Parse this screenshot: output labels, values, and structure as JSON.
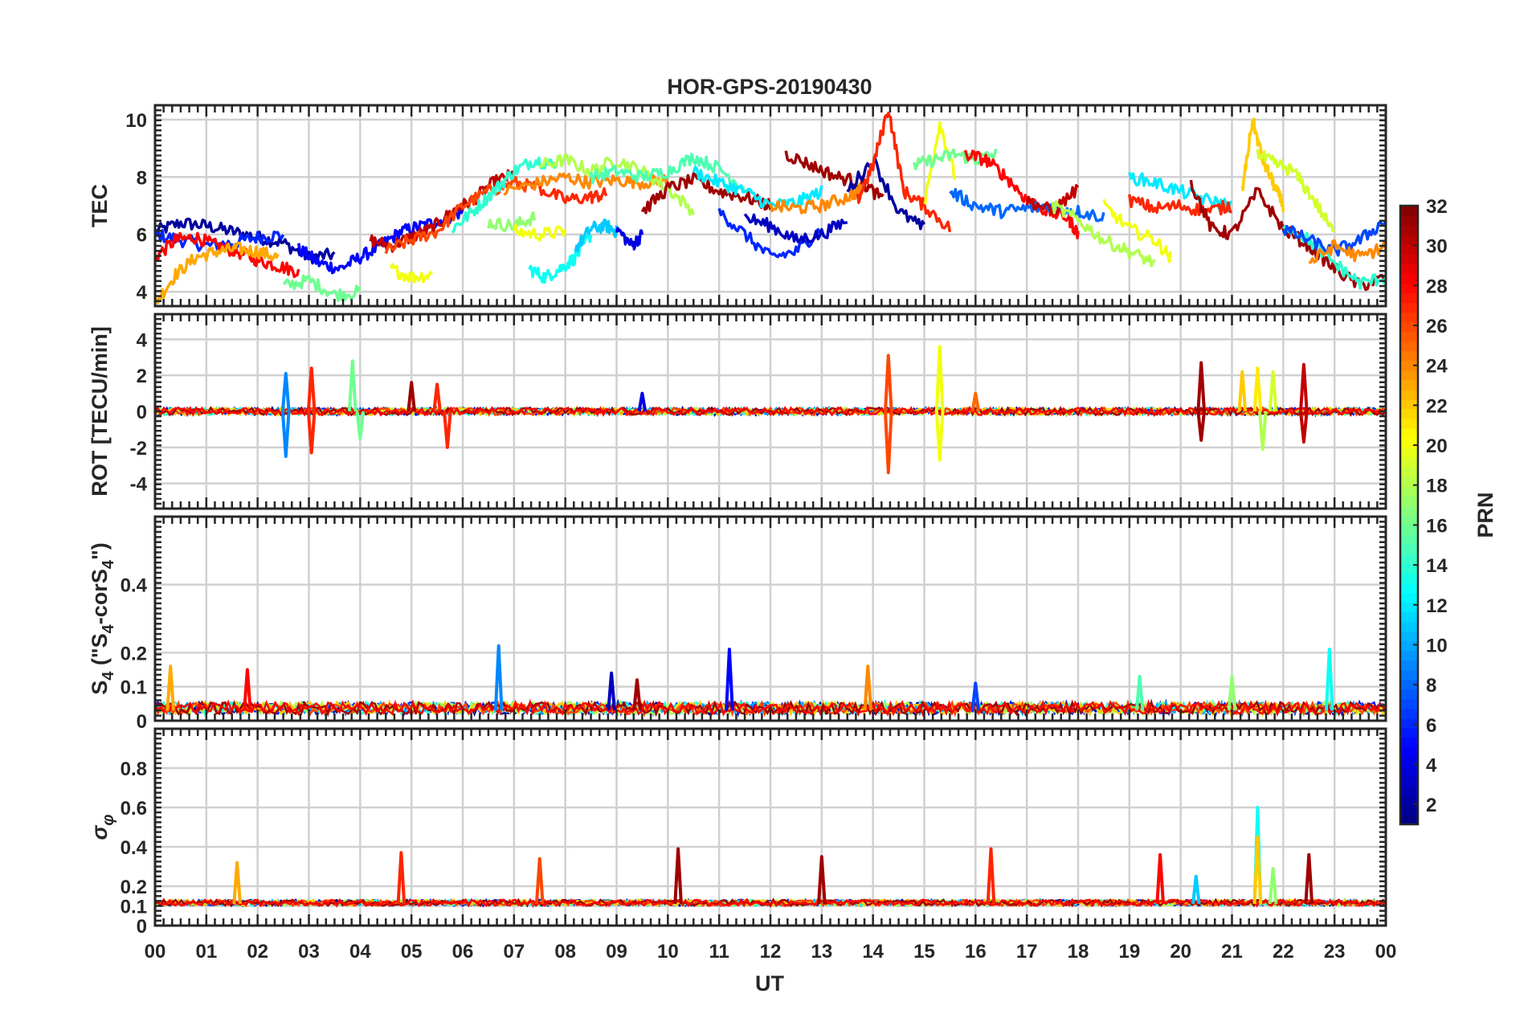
{
  "chart_data": [
    {
      "type": "line",
      "title": "HOR-GPS-20190430",
      "ylabel": "TEC",
      "xlabel": "",
      "xlim": [
        0,
        24
      ],
      "ylim": [
        3.5,
        10.5
      ],
      "yticks": [
        4,
        6,
        8,
        10
      ],
      "grid": true,
      "series": [
        {
          "prn": 2,
          "x": [
            0.0,
            0.5,
            1.0,
            1.5,
            2.0,
            2.5,
            3.0,
            3.5
          ],
          "y": [
            6.1,
            6.4,
            6.3,
            6.1,
            5.9,
            5.7,
            5.2,
            5.3
          ]
        },
        {
          "prn": 6,
          "x": [
            0.0,
            0.5,
            1.0,
            1.5,
            2.0,
            2.5
          ],
          "y": [
            6.0,
            5.8,
            5.6,
            5.7,
            5.9,
            6.0
          ]
        },
        {
          "prn": 5,
          "x": [
            2.8,
            3.2,
            3.6,
            4.0,
            4.4,
            4.8,
            5.2,
            5.6,
            6.0
          ],
          "y": [
            5.5,
            5.0,
            4.8,
            5.2,
            5.6,
            6.1,
            6.3,
            6.5,
            6.8
          ]
        },
        {
          "prn": 28,
          "x": [
            0.0,
            0.4,
            0.8,
            1.2,
            1.6,
            2.0,
            2.4,
            2.8
          ],
          "y": [
            5.2,
            5.8,
            5.9,
            5.6,
            5.4,
            5.1,
            4.9,
            4.7
          ]
        },
        {
          "prn": 23,
          "x": [
            0.0,
            0.4,
            0.8,
            1.2,
            1.6,
            2.0,
            2.4
          ],
          "y": [
            3.6,
            4.6,
            5.2,
            5.4,
            5.5,
            5.4,
            5.2
          ]
        },
        {
          "prn": 16,
          "x": [
            2.5,
            3.0,
            3.5,
            4.0
          ],
          "y": [
            4.2,
            4.4,
            3.9,
            4.0
          ]
        },
        {
          "prn": 30,
          "x": [
            4.2,
            4.6,
            5.0,
            5.4,
            5.8,
            6.2,
            6.6,
            7.0
          ],
          "y": [
            5.8,
            5.6,
            5.9,
            6.2,
            6.8,
            7.2,
            7.8,
            8.1
          ]
        },
        {
          "prn": 26,
          "x": [
            4.5,
            5.0,
            5.5,
            6.0,
            6.5,
            7.0,
            7.5
          ],
          "y": [
            5.4,
            5.8,
            6.1,
            7.0,
            7.5,
            7.8,
            7.6
          ]
        },
        {
          "prn": 20,
          "x": [
            4.6,
            5.0,
            5.4
          ],
          "y": [
            4.8,
            4.5,
            4.6
          ]
        },
        {
          "prn": 14,
          "x": [
            5.8,
            6.2,
            6.6,
            7.0,
            7.4,
            7.8
          ],
          "y": [
            6.2,
            6.8,
            7.5,
            8.2,
            8.6,
            8.4
          ]
        },
        {
          "prn": 17,
          "x": [
            6.5,
            7.0,
            7.4
          ],
          "y": [
            6.4,
            6.3,
            6.6
          ]
        },
        {
          "prn": 20,
          "x": [
            7.0,
            7.5,
            8.0
          ],
          "y": [
            6.1,
            6.0,
            6.1
          ]
        },
        {
          "prn": 13,
          "x": [
            7.3,
            7.6,
            7.9,
            8.2,
            8.5
          ],
          "y": [
            4.8,
            4.5,
            4.8,
            5.2,
            6.0
          ]
        },
        {
          "prn": 11,
          "x": [
            8.2,
            8.5,
            8.8,
            9.0
          ],
          "y": [
            5.5,
            6.2,
            6.3,
            6.1
          ]
        },
        {
          "prn": 4,
          "x": [
            9.0,
            9.3,
            9.5
          ],
          "y": [
            6.2,
            5.6,
            6.0
          ]
        },
        {
          "prn": 24,
          "x": [
            6.8,
            7.5,
            8.0,
            8.5,
            9.0,
            9.5,
            10.0
          ],
          "y": [
            7.5,
            7.8,
            8.0,
            7.8,
            7.9,
            7.8,
            7.9
          ]
        },
        {
          "prn": 27,
          "x": [
            7.5,
            8.0,
            8.5,
            8.8
          ],
          "y": [
            7.6,
            7.2,
            7.3,
            7.4
          ]
        },
        {
          "prn": 18,
          "x": [
            7.5,
            8.0,
            8.5,
            9.0,
            9.5,
            10.0,
            10.5
          ],
          "y": [
            8.4,
            8.6,
            8.2,
            8.6,
            8.2,
            7.6,
            6.8
          ]
        },
        {
          "prn": 15,
          "x": [
            8.5,
            9.0,
            9.5,
            10.0,
            10.5,
            11.0,
            11.5
          ],
          "y": [
            8.0,
            8.2,
            8.0,
            8.2,
            8.7,
            8.3,
            7.6
          ]
        },
        {
          "prn": 31,
          "x": [
            9.5,
            10.0,
            10.5,
            11.0,
            11.5,
            12.0
          ],
          "y": [
            6.8,
            7.6,
            7.9,
            7.5,
            7.3,
            7.0
          ]
        },
        {
          "prn": 12,
          "x": [
            10.5,
            11.0,
            11.5,
            12.0,
            12.5,
            13.0
          ],
          "y": [
            8.2,
            7.8,
            7.5,
            7.0,
            7.1,
            7.5
          ]
        },
        {
          "prn": 6,
          "x": [
            11.0,
            11.5,
            12.0,
            12.5,
            13.0
          ],
          "y": [
            6.8,
            6.0,
            5.2,
            5.4,
            6.2
          ]
        },
        {
          "prn": 3,
          "x": [
            11.5,
            12.0,
            12.5,
            13.0,
            13.5
          ],
          "y": [
            6.6,
            6.3,
            5.8,
            6.0,
            6.5
          ]
        },
        {
          "prn": 31,
          "x": [
            12.3,
            12.8,
            13.3,
            13.8,
            14.2
          ],
          "y": [
            8.8,
            8.4,
            8.0,
            7.8,
            7.2
          ]
        },
        {
          "prn": 24,
          "x": [
            12.0,
            12.5,
            13.0,
            13.5,
            13.8
          ],
          "y": [
            7.0,
            6.9,
            7.0,
            7.3,
            7.6
          ]
        },
        {
          "prn": 2,
          "x": [
            13.5,
            14.0,
            14.5,
            15.0
          ],
          "y": [
            7.5,
            8.6,
            6.8,
            6.2
          ]
        },
        {
          "prn": 27,
          "x": [
            13.7,
            14.0,
            14.3,
            14.6,
            15.0,
            15.5
          ],
          "y": [
            7.2,
            8.4,
            10.4,
            7.5,
            7.0,
            6.2
          ]
        },
        {
          "prn": 20,
          "x": [
            15.0,
            15.3,
            15.6
          ],
          "y": [
            7.0,
            9.9,
            8.0
          ]
        },
        {
          "prn": 16,
          "x": [
            14.8,
            15.2,
            15.6,
            16.0,
            16.4
          ],
          "y": [
            8.4,
            8.6,
            8.8,
            8.6,
            8.8
          ]
        },
        {
          "prn": 28,
          "x": [
            15.8,
            16.2,
            16.6,
            17.0,
            17.4,
            17.8,
            18.0
          ],
          "y": [
            8.8,
            8.6,
            8.0,
            7.2,
            6.8,
            6.6,
            6.0
          ]
        },
        {
          "prn": 8,
          "x": [
            15.5,
            16.0,
            16.5,
            17.0,
            17.5,
            18.0,
            18.5
          ],
          "y": [
            7.5,
            7.0,
            6.8,
            6.9,
            7.0,
            6.8,
            6.6
          ]
        },
        {
          "prn": 30,
          "x": [
            17.0,
            17.5,
            18.0
          ],
          "y": [
            7.2,
            6.8,
            7.6
          ]
        },
        {
          "prn": 18,
          "x": [
            17.5,
            18.0,
            18.5,
            19.0,
            19.5
          ],
          "y": [
            7.0,
            6.5,
            5.8,
            5.4,
            5.0
          ]
        },
        {
          "prn": 20,
          "x": [
            18.5,
            19.0,
            19.5,
            19.8
          ],
          "y": [
            7.0,
            6.2,
            5.8,
            5.2
          ]
        },
        {
          "prn": 12,
          "x": [
            19.0,
            19.5,
            20.0,
            20.5,
            21.0
          ],
          "y": [
            8.0,
            7.8,
            7.5,
            7.2,
            7.0
          ]
        },
        {
          "prn": 27,
          "x": [
            19.0,
            19.5,
            20.0,
            20.5,
            21.0
          ],
          "y": [
            7.2,
            6.9,
            7.0,
            6.8,
            7.0
          ]
        },
        {
          "prn": 31,
          "x": [
            20.2,
            20.6,
            21.0,
            21.5,
            22.0,
            22.5,
            23.0,
            23.5,
            24.0
          ],
          "y": [
            7.8,
            6.2,
            6.0,
            7.5,
            6.2,
            5.6,
            4.8,
            4.2,
            4.5
          ]
        },
        {
          "prn": 22,
          "x": [
            21.2,
            21.4,
            21.6,
            21.8,
            22.0
          ],
          "y": [
            7.5,
            10.0,
            8.6,
            7.8,
            7.0
          ]
        },
        {
          "prn": 19,
          "x": [
            21.5,
            21.8,
            22.2,
            22.6,
            23.0
          ],
          "y": [
            8.8,
            8.5,
            8.2,
            7.2,
            6.0
          ]
        },
        {
          "prn": 14,
          "x": [
            22.0,
            22.5,
            23.0,
            23.5,
            24.0
          ],
          "y": [
            6.4,
            5.8,
            5.0,
            4.3,
            4.5
          ]
        },
        {
          "prn": 7,
          "x": [
            22.0,
            22.5,
            23.0,
            23.5,
            24.0
          ],
          "y": [
            6.2,
            5.8,
            5.4,
            5.8,
            6.5
          ]
        },
        {
          "prn": 24,
          "x": [
            22.5,
            23.0,
            23.5,
            24.0
          ],
          "y": [
            5.0,
            5.6,
            5.2,
            5.6
          ]
        }
      ]
    },
    {
      "type": "line",
      "ylabel": "ROT [TECU/min]",
      "xlim": [
        0,
        24
      ],
      "ylim": [
        -5.4,
        5.4
      ],
      "yticks": [
        -4,
        -2,
        0,
        2,
        4
      ],
      "grid": true,
      "noise_amplitude": 0.2,
      "spikes": [
        {
          "x": 2.55,
          "y": 2.1,
          "prn": 9
        },
        {
          "x": 2.55,
          "y": -2.5,
          "prn": 9
        },
        {
          "x": 3.05,
          "y": 2.4,
          "prn": 27
        },
        {
          "x": 3.05,
          "y": -2.3,
          "prn": 27
        },
        {
          "x": 3.85,
          "y": 2.8,
          "prn": 16
        },
        {
          "x": 4.0,
          "y": -1.5,
          "prn": 16
        },
        {
          "x": 5.0,
          "y": 1.6,
          "prn": 31
        },
        {
          "x": 5.5,
          "y": 1.5,
          "prn": 27
        },
        {
          "x": 5.7,
          "y": -2.0,
          "prn": 27
        },
        {
          "x": 9.5,
          "y": 1.0,
          "prn": 4
        },
        {
          "x": 14.3,
          "y": 3.1,
          "prn": 26
        },
        {
          "x": 14.3,
          "y": -3.4,
          "prn": 26
        },
        {
          "x": 15.3,
          "y": 3.6,
          "prn": 20
        },
        {
          "x": 15.3,
          "y": -2.7,
          "prn": 20
        },
        {
          "x": 16.0,
          "y": 1.0,
          "prn": 25
        },
        {
          "x": 20.4,
          "y": 2.7,
          "prn": 31
        },
        {
          "x": 20.4,
          "y": -1.6,
          "prn": 31
        },
        {
          "x": 21.2,
          "y": 2.2,
          "prn": 22
        },
        {
          "x": 21.5,
          "y": 2.4,
          "prn": 21
        },
        {
          "x": 21.6,
          "y": -2.1,
          "prn": 18
        },
        {
          "x": 21.8,
          "y": 2.2,
          "prn": 19
        },
        {
          "x": 22.4,
          "y": 2.6,
          "prn": 30
        },
        {
          "x": 22.4,
          "y": -1.7,
          "prn": 30
        }
      ]
    },
    {
      "type": "line",
      "ylabel": "S4 (\"S4-corS4\")",
      "xlim": [
        0,
        24
      ],
      "ylim": [
        0,
        0.6
      ],
      "yticks": [
        0,
        0.1,
        0.2,
        0.4
      ],
      "grid": true,
      "baseline": 0.03,
      "spikes": [
        {
          "x": 0.3,
          "y": 0.16,
          "prn": 23
        },
        {
          "x": 1.8,
          "y": 0.15,
          "prn": 28
        },
        {
          "x": 6.7,
          "y": 0.22,
          "prn": 9
        },
        {
          "x": 8.9,
          "y": 0.14,
          "prn": 3
        },
        {
          "x": 9.4,
          "y": 0.12,
          "prn": 31
        },
        {
          "x": 11.2,
          "y": 0.21,
          "prn": 5
        },
        {
          "x": 13.9,
          "y": 0.16,
          "prn": 24
        },
        {
          "x": 16.0,
          "y": 0.11,
          "prn": 7
        },
        {
          "x": 19.2,
          "y": 0.13,
          "prn": 15
        },
        {
          "x": 21.0,
          "y": 0.13,
          "prn": 17
        },
        {
          "x": 22.9,
          "y": 0.21,
          "prn": 13
        }
      ]
    },
    {
      "type": "line",
      "ylabel": "σφ",
      "xlabel": "UT",
      "xlim": [
        0,
        24
      ],
      "ylim": [
        0,
        1.0
      ],
      "yticks": [
        0,
        0.1,
        0.2,
        0.4,
        0.6,
        0.8
      ],
      "grid": true,
      "baseline": 0.11,
      "spikes": [
        {
          "x": 1.6,
          "y": 0.32,
          "prn": 23
        },
        {
          "x": 4.8,
          "y": 0.37,
          "prn": 27
        },
        {
          "x": 7.5,
          "y": 0.34,
          "prn": 26
        },
        {
          "x": 10.2,
          "y": 0.39,
          "prn": 31
        },
        {
          "x": 13.0,
          "y": 0.35,
          "prn": 31
        },
        {
          "x": 16.3,
          "y": 0.39,
          "prn": 27
        },
        {
          "x": 19.6,
          "y": 0.36,
          "prn": 28
        },
        {
          "x": 20.3,
          "y": 0.25,
          "prn": 11
        },
        {
          "x": 21.5,
          "y": 0.6,
          "prn": 13
        },
        {
          "x": 21.5,
          "y": 0.45,
          "prn": 22
        },
        {
          "x": 21.8,
          "y": 0.29,
          "prn": 17
        },
        {
          "x": 22.5,
          "y": 0.36,
          "prn": 31
        }
      ]
    }
  ],
  "xaxis": {
    "xlim": [
      0,
      24
    ],
    "tick_labels": [
      "00",
      "01",
      "02",
      "03",
      "04",
      "05",
      "06",
      "07",
      "08",
      "09",
      "10",
      "11",
      "12",
      "13",
      "14",
      "15",
      "16",
      "17",
      "18",
      "19",
      "20",
      "21",
      "22",
      "23",
      "00"
    ],
    "label": "UT"
  },
  "colorbar": {
    "label": "PRN",
    "range": [
      1,
      32
    ],
    "colormap": "jet",
    "tick_labels": [
      "2",
      "4",
      "6",
      "8",
      "10",
      "12",
      "14",
      "16",
      "18",
      "20",
      "22",
      "24",
      "26",
      "28",
      "30",
      "32"
    ]
  }
}
